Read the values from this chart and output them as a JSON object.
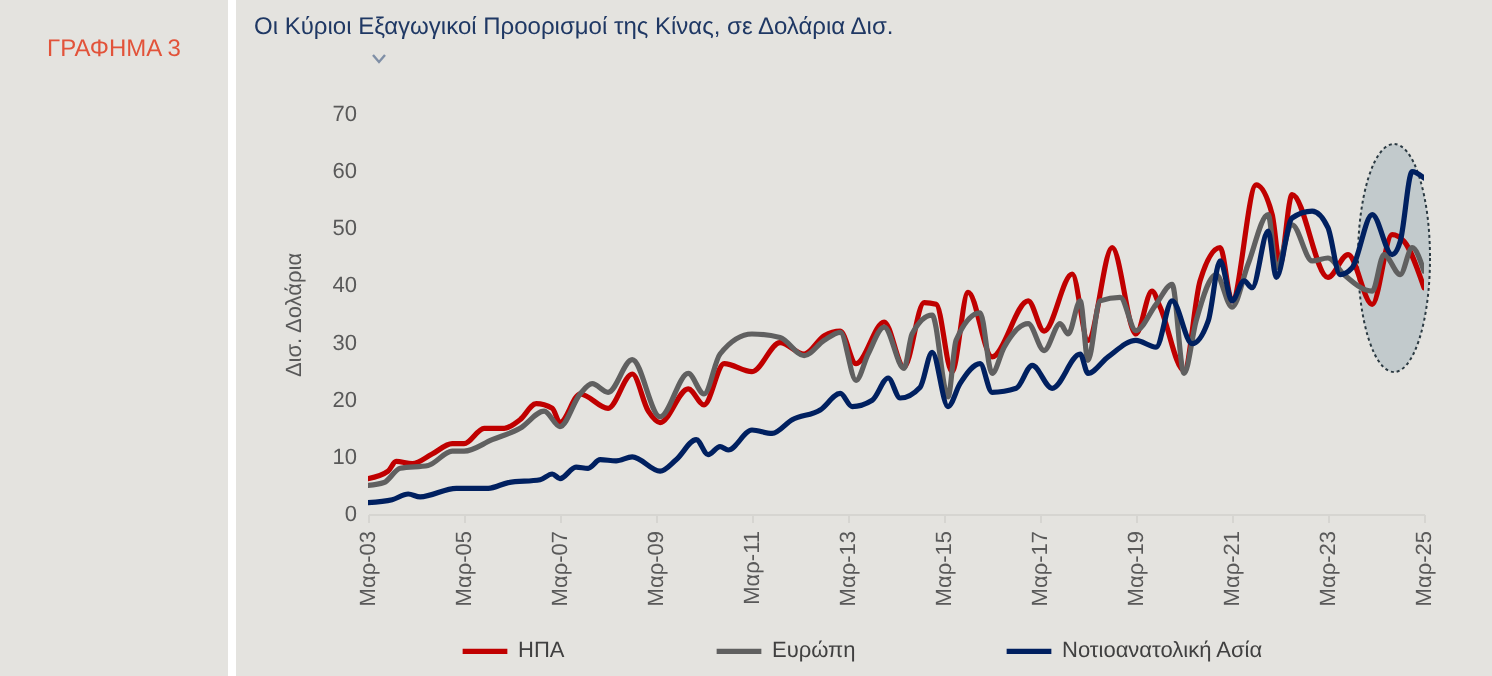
{
  "chart_data": {
    "type": "line",
    "title": "Οι Κύριοι Εξαγωγικοί Προορισμοί της Κίνας, σε Δολάρια Δισ.",
    "ylabel": "Δισ. Δολάρια",
    "annotations": [
      "ΓΡΑΦΗΜΑ 3"
    ],
    "xlim": [
      "2003-03",
      "2025-03"
    ],
    "xticks": [
      {
        "value": "2003-03",
        "label": "Μαρ-03"
      },
      {
        "value": "2005-03",
        "label": "Μαρ-05"
      },
      {
        "value": "2007-03",
        "label": "Μαρ-07"
      },
      {
        "value": "2009-03",
        "label": "Μαρ-09"
      },
      {
        "value": "2011-03",
        "label": "Μαρ-11"
      },
      {
        "value": "2013-03",
        "label": "Μαρ-13"
      },
      {
        "value": "2015-03",
        "label": "Μαρ-15"
      },
      {
        "value": "2017-03",
        "label": "Μαρ-17"
      },
      {
        "value": "2019-03",
        "label": "Μαρ-19"
      },
      {
        "value": "2021-03",
        "label": "Μαρ-21"
      },
      {
        "value": "2023-03",
        "label": "Μαρ-23"
      },
      {
        "value": "2025-03",
        "label": "Μαρ-25"
      }
    ],
    "ylim": [
      0,
      70
    ],
    "yticks": [
      0,
      10,
      20,
      30,
      40,
      50,
      60,
      70
    ],
    "legend": "bottom",
    "series": [
      {
        "name": "ΗΠΑ",
        "color": "#c00000",
        "x": [
          "2003-03",
          "2003-08",
          "2003-10",
          "2004-02",
          "2004-07",
          "2004-12",
          "2005-03",
          "2005-08",
          "2006-01",
          "2006-05",
          "2006-09",
          "2007-01",
          "2007-03",
          "2007-08",
          "2008-03",
          "2008-09",
          "2009-01",
          "2009-04",
          "2009-11",
          "2010-03",
          "2010-08",
          "2011-03",
          "2011-10",
          "2012-04",
          "2012-09",
          "2013-01",
          "2013-05",
          "2013-12",
          "2014-05",
          "2014-10",
          "2015-01",
          "2015-05",
          "2015-09",
          "2016-03",
          "2016-12",
          "2017-04",
          "2017-11",
          "2018-03",
          "2018-09",
          "2019-03",
          "2019-07",
          "2019-09",
          "2020-03",
          "2020-07",
          "2020-12",
          "2021-03",
          "2021-09",
          "2022-01",
          "2022-03",
          "2022-06",
          "2023-03",
          "2023-08",
          "2024-02",
          "2024-07",
          "2024-10",
          "2025-03"
        ],
        "values": [
          6.2,
          7.5,
          9.2,
          8.8,
          10.5,
          12.3,
          12.3,
          15,
          15,
          16.5,
          19.3,
          18.5,
          16,
          21,
          18.5,
          24.5,
          18,
          16,
          21.9,
          19.1,
          26.3,
          24.9,
          30,
          28,
          31.2,
          32,
          26.3,
          33.6,
          25.7,
          37,
          36.7,
          24.9,
          38.8,
          27.5,
          37.3,
          32,
          42,
          30.4,
          46.6,
          31.5,
          39,
          36.2,
          25.1,
          40.8,
          46.6,
          37.3,
          57.6,
          52.4,
          43.7,
          55.9,
          41.4,
          45.4,
          36.7,
          48.9,
          47.7,
          39.6
        ]
      },
      {
        "name": "Ευρώπη",
        "color": "#606060",
        "x": [
          "2003-03",
          "2003-07",
          "2003-11",
          "2004-06",
          "2004-12",
          "2005-03",
          "2005-10",
          "2006-05",
          "2006-11",
          "2007-03",
          "2007-08",
          "2007-11",
          "2008-03",
          "2008-09",
          "2009-04",
          "2009-11",
          "2010-03",
          "2010-07",
          "2011-03",
          "2011-10",
          "2012-04",
          "2012-09",
          "2013-01",
          "2013-05",
          "2013-08",
          "2013-12",
          "2014-05",
          "2014-07",
          "2014-12",
          "2015-04",
          "2015-06",
          "2015-12",
          "2016-03",
          "2016-06",
          "2016-12",
          "2017-04",
          "2017-08",
          "2017-10",
          "2018-01",
          "2018-03",
          "2018-06",
          "2018-11",
          "2019-03",
          "2019-08",
          "2019-12",
          "2020-03",
          "2020-06",
          "2020-11",
          "2021-03",
          "2021-07",
          "2021-12",
          "2022-02",
          "2022-06",
          "2022-11",
          "2023-03",
          "2023-07",
          "2024-02",
          "2024-05",
          "2024-09",
          "2024-12",
          "2025-03"
        ],
        "values": [
          5,
          5.5,
          8,
          8.5,
          11,
          11,
          13,
          15,
          18,
          15.3,
          21,
          22.8,
          21.3,
          27,
          17,
          24.6,
          21,
          28,
          31.5,
          30.9,
          27.7,
          30.4,
          31.8,
          23.4,
          28,
          32.7,
          25.5,
          31.5,
          34.8,
          20.5,
          30.4,
          35.2,
          24.6,
          29.2,
          33.3,
          28.6,
          33.3,
          31.5,
          37.3,
          26.9,
          37.3,
          37.9,
          32.1,
          36.7,
          40.2,
          24.6,
          33.8,
          41.9,
          36.2,
          43.7,
          52.4,
          43.1,
          50.6,
          44.3,
          44.8,
          41.9,
          39,
          45.4,
          41.9,
          46.6,
          42.5
        ]
      },
      {
        "name": "Νοτιοανατολική Ασία",
        "color": "#002060",
        "x": [
          "2003-03",
          "2003-09",
          "2004-01",
          "2004-04",
          "2005-01",
          "2005-09",
          "2006-02",
          "2006-10",
          "2007-01",
          "2007-03",
          "2007-07",
          "2007-10",
          "2008-01",
          "2008-05",
          "2008-09",
          "2009-04",
          "2009-08",
          "2010-01",
          "2010-04",
          "2010-07",
          "2010-09",
          "2011-03",
          "2011-08",
          "2012-01",
          "2012-08",
          "2013-01",
          "2013-04",
          "2013-09",
          "2014-01",
          "2014-04",
          "2014-09",
          "2014-12",
          "2015-04",
          "2015-07",
          "2015-12",
          "2016-03",
          "2016-09",
          "2017-01",
          "2017-06",
          "2018-01",
          "2018-03",
          "2018-08",
          "2019-03",
          "2019-08",
          "2019-12",
          "2020-05",
          "2020-09",
          "2020-12",
          "2021-03",
          "2021-06",
          "2021-08",
          "2021-12",
          "2022-02",
          "2022-06",
          "2022-11",
          "2023-03",
          "2023-06",
          "2023-09",
          "2024-02",
          "2024-07",
          "2024-09",
          "2024-12",
          "2025-03"
        ],
        "values": [
          2,
          2.5,
          3.5,
          3,
          4.5,
          4.5,
          5.5,
          6,
          7,
          6.2,
          8.2,
          8,
          9.5,
          9.3,
          10,
          7.5,
          9.5,
          13,
          10.4,
          11.8,
          11.2,
          14.7,
          14.1,
          16.5,
          18.2,
          21.1,
          18.8,
          19.9,
          23.8,
          20.3,
          22.2,
          28.3,
          18.8,
          22.8,
          26.3,
          21.3,
          22,
          26,
          22,
          28,
          24.6,
          27.5,
          30.4,
          29.2,
          37.3,
          29.8,
          33.8,
          44.3,
          37.3,
          40.8,
          39.6,
          49.5,
          41.4,
          51.8,
          53,
          50.1,
          41.9,
          43.1,
          52.4,
          45.4,
          47.7,
          59.9,
          58.8
        ]
      }
    ]
  }
}
